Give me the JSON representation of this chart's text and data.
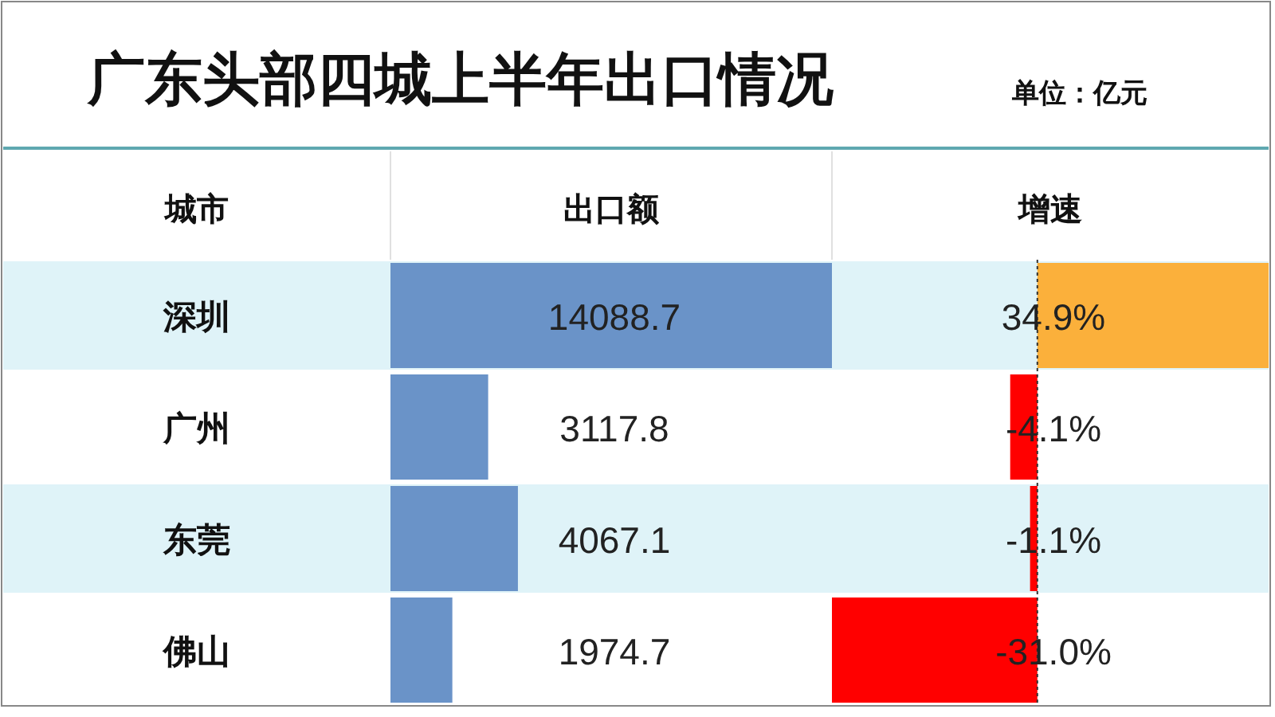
{
  "chart_data": [
    {
      "type": "bar",
      "orientation": "horizontal",
      "title": "广东头部四城上半年出口情况",
      "annotations": [
        "单位：亿元"
      ],
      "ylabel": "城市",
      "xlabel": "出口额",
      "categories": [
        "深圳",
        "广州",
        "东莞",
        "佛山"
      ],
      "values": [
        14088.7,
        3117.8,
        4067.1,
        1974.7
      ],
      "color": "#6a93c8",
      "xlim": [
        0,
        14088.7
      ],
      "data_labels": true
    },
    {
      "type": "bar",
      "orientation": "horizontal",
      "xlabel": "增速",
      "categories": [
        null,
        null,
        null,
        null
      ],
      "ref_lines": [
        {
          "axis": "x",
          "value": 0,
          "line_style": "dashed",
          "color": "#333333"
        }
      ],
      "values": [
        34.9,
        -4.1,
        -1.1,
        -31.0
      ],
      "colors": [
        "#fbb03b",
        "#ff0000",
        "#ff0000",
        "#ff0000"
      ],
      "value_labels": [
        "34.9%",
        "-4.1%",
        "-1.1%",
        "-31.0%"
      ],
      "xlim": [
        -31.0,
        34.9
      ]
    }
  ]
}
